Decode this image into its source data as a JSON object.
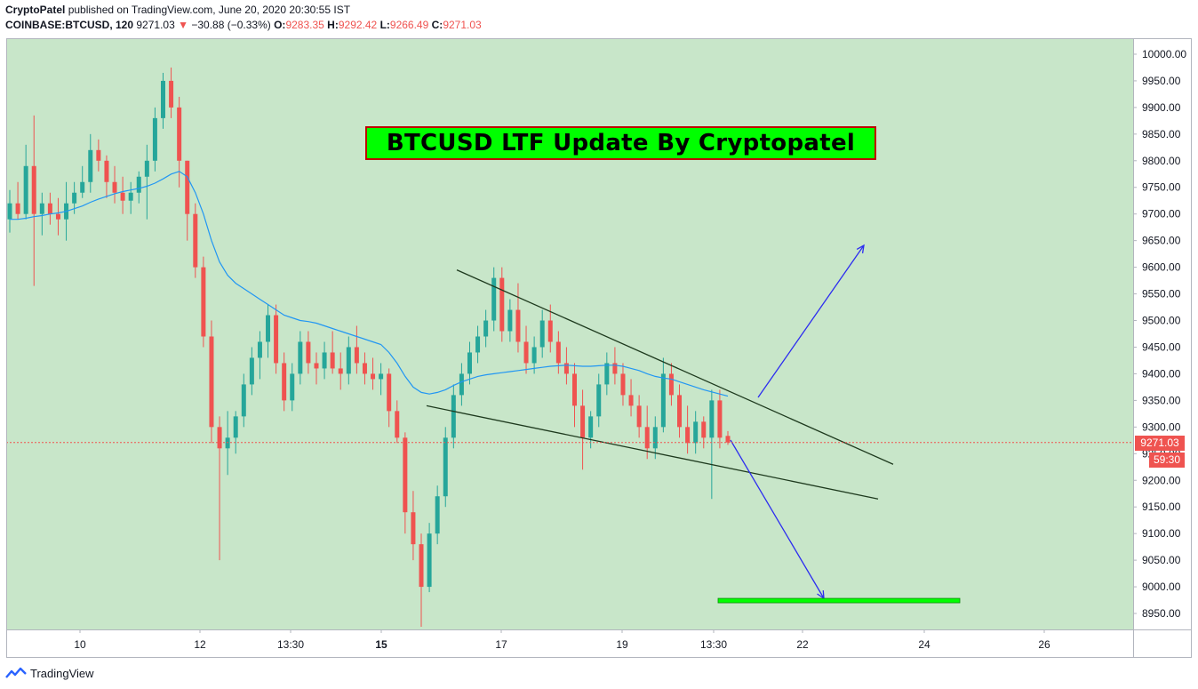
{
  "header": {
    "author": "CryptoPatel",
    "published_text": "published on TradingView.com, June 20, 2020 20:30:55 IST",
    "symbol": "COINBASE:BTCUSD, 120",
    "last": "9271.03",
    "change_arrow": "▼",
    "change": "−30.88 (−0.33%)",
    "o_label": "O:",
    "o_value": "9283.35",
    "h_label": "H:",
    "h_value": "9292.42",
    "l_label": "L:",
    "l_value": "9266.49",
    "c_label": "C:",
    "c_value": "9271.03"
  },
  "annotation": {
    "title": "BTCUSD LTF Update By Cryptopatel"
  },
  "price_label": "9271.03",
  "countdown": "59:30",
  "footer": {
    "brand": "TradingView"
  },
  "colors": {
    "chart_background": "#c8e6c9",
    "up_candle": "#26a69a",
    "down_candle": "#ef5350",
    "moving_average": "#2196f3",
    "trendline": "#1e3a1e",
    "target_arrow": "#2c2cf0",
    "target_zone": "#00ff00"
  },
  "chart_data": {
    "type": "candlestick",
    "symbol": "COINBASE:BTCUSD",
    "interval": "120",
    "ylim": [
      8920,
      10030
    ],
    "y_ticks": [
      "10000.00",
      "9950.00",
      "9900.00",
      "9850.00",
      "9800.00",
      "9750.00",
      "9700.00",
      "9650.00",
      "9600.00",
      "9550.00",
      "9500.00",
      "9450.00",
      "9400.00",
      "9350.00",
      "9300.00",
      "9250.00",
      "9200.00",
      "9150.00",
      "9100.00",
      "9050.00",
      "9000.00",
      "8950.00"
    ],
    "x_ticks": [
      "10",
      "12",
      "13:30",
      "15",
      "17",
      "19",
      "13:30",
      "22",
      "24",
      "26"
    ],
    "last_price": 9271.03,
    "drawings": {
      "upper_trendline": {
        "from": 9595,
        "to": 9230
      },
      "lower_trendline": {
        "from": 9340,
        "to": 9165
      },
      "target_level": 8975
    },
    "candles_ohlc": [
      [
        9690,
        9745,
        9665,
        9720
      ],
      [
        9720,
        9760,
        9690,
        9700
      ],
      [
        9700,
        9830,
        9690,
        9790
      ],
      [
        9790,
        9885,
        9565,
        9700
      ],
      [
        9700,
        9740,
        9660,
        9720
      ],
      [
        9720,
        9740,
        9680,
        9700
      ],
      [
        9700,
        9730,
        9660,
        9690
      ],
      [
        9690,
        9760,
        9650,
        9720
      ],
      [
        9720,
        9760,
        9700,
        9740
      ],
      [
        9740,
        9790,
        9730,
        9760
      ],
      [
        9760,
        9850,
        9740,
        9820
      ],
      [
        9820,
        9840,
        9780,
        9800
      ],
      [
        9800,
        9810,
        9730,
        9760
      ],
      [
        9760,
        9790,
        9720,
        9740
      ],
      [
        9740,
        9770,
        9700,
        9725
      ],
      [
        9725,
        9760,
        9700,
        9740
      ],
      [
        9740,
        9780,
        9720,
        9770
      ],
      [
        9770,
        9830,
        9690,
        9800
      ],
      [
        9800,
        9900,
        9780,
        9880
      ],
      [
        9880,
        9965,
        9860,
        9950
      ],
      [
        9950,
        9975,
        9880,
        9900
      ],
      [
        9900,
        9920,
        9750,
        9800
      ],
      [
        9800,
        9800,
        9650,
        9700
      ],
      [
        9700,
        9720,
        9580,
        9600
      ],
      [
        9600,
        9620,
        9450,
        9470
      ],
      [
        9470,
        9500,
        9270,
        9300
      ],
      [
        9300,
        9320,
        9050,
        9260
      ],
      [
        9260,
        9330,
        9210,
        9280
      ],
      [
        9280,
        9330,
        9250,
        9320
      ],
      [
        9320,
        9400,
        9300,
        9380
      ],
      [
        9380,
        9450,
        9360,
        9430
      ],
      [
        9430,
        9480,
        9390,
        9460
      ],
      [
        9460,
        9530,
        9430,
        9510
      ],
      [
        9510,
        9530,
        9400,
        9420
      ],
      [
        9420,
        9440,
        9330,
        9350
      ],
      [
        9350,
        9420,
        9330,
        9400
      ],
      [
        9400,
        9480,
        9380,
        9460
      ],
      [
        9460,
        9480,
        9400,
        9420
      ],
      [
        9420,
        9440,
        9380,
        9410
      ],
      [
        9410,
        9460,
        9390,
        9440
      ],
      [
        9440,
        9480,
        9400,
        9410
      ],
      [
        9410,
        9440,
        9370,
        9400
      ],
      [
        9400,
        9470,
        9380,
        9450
      ],
      [
        9450,
        9490,
        9400,
        9420
      ],
      [
        9420,
        9440,
        9380,
        9400
      ],
      [
        9400,
        9430,
        9370,
        9390
      ],
      [
        9390,
        9420,
        9360,
        9400
      ],
      [
        9400,
        9410,
        9300,
        9330
      ],
      [
        9330,
        9350,
        9270,
        9280
      ],
      [
        9280,
        9290,
        9100,
        9140
      ],
      [
        9140,
        9180,
        9050,
        9080
      ],
      [
        9080,
        9100,
        8925,
        9000
      ],
      [
        9000,
        9120,
        8990,
        9100
      ],
      [
        9100,
        9190,
        9080,
        9170
      ],
      [
        9170,
        9300,
        9150,
        9280
      ],
      [
        9280,
        9380,
        9260,
        9360
      ],
      [
        9360,
        9420,
        9340,
        9400
      ],
      [
        9400,
        9460,
        9380,
        9440
      ],
      [
        9440,
        9490,
        9420,
        9470
      ],
      [
        9470,
        9520,
        9450,
        9500
      ],
      [
        9500,
        9600,
        9480,
        9580
      ],
      [
        9580,
        9600,
        9460,
        9480
      ],
      [
        9480,
        9540,
        9460,
        9520
      ],
      [
        9520,
        9570,
        9440,
        9460
      ],
      [
        9460,
        9490,
        9400,
        9420
      ],
      [
        9420,
        9470,
        9400,
        9450
      ],
      [
        9450,
        9520,
        9430,
        9500
      ],
      [
        9500,
        9530,
        9440,
        9460
      ],
      [
        9460,
        9480,
        9400,
        9420
      ],
      [
        9420,
        9450,
        9380,
        9400
      ],
      [
        9400,
        9420,
        9300,
        9340
      ],
      [
        9340,
        9370,
        9220,
        9280
      ],
      [
        9280,
        9330,
        9260,
        9320
      ],
      [
        9320,
        9400,
        9300,
        9380
      ],
      [
        9380,
        9440,
        9360,
        9420
      ],
      [
        9420,
        9450,
        9380,
        9400
      ],
      [
        9400,
        9420,
        9340,
        9360
      ],
      [
        9360,
        9390,
        9320,
        9340
      ],
      [
        9340,
        9360,
        9280,
        9300
      ],
      [
        9300,
        9340,
        9240,
        9260
      ],
      [
        9260,
        9320,
        9240,
        9300
      ],
      [
        9300,
        9430,
        9290,
        9400
      ],
      [
        9400,
        9420,
        9340,
        9360
      ],
      [
        9360,
        9380,
        9280,
        9300
      ],
      [
        9300,
        9340,
        9250,
        9270
      ],
      [
        9270,
        9330,
        9250,
        9310
      ],
      [
        9310,
        9320,
        9260,
        9280
      ],
      [
        9280,
        9370,
        9165,
        9350
      ],
      [
        9350,
        9370,
        9260,
        9280
      ],
      [
        9283.35,
        9292.42,
        9266.49,
        9271.03
      ]
    ],
    "moving_average": [
      9690,
      9690,
      9692,
      9695,
      9697,
      9700,
      9702,
      9705,
      9710,
      9715,
      9722,
      9728,
      9733,
      9738,
      9742,
      9745,
      9748,
      9752,
      9758,
      9766,
      9775,
      9780,
      9770,
      9740,
      9700,
      9650,
      9610,
      9585,
      9570,
      9560,
      9550,
      9540,
      9530,
      9520,
      9510,
      9505,
      9500,
      9498,
      9495,
      9490,
      9485,
      9480,
      9475,
      9470,
      9465,
      9460,
      9455,
      9440,
      9420,
      9395,
      9375,
      9365,
      9362,
      9365,
      9370,
      9378,
      9385,
      9390,
      9395,
      9398,
      9400,
      9402,
      9404,
      9406,
      9408,
      9410,
      9412,
      9414,
      9415,
      9416,
      9415,
      9414,
      9414,
      9415,
      9416,
      9416,
      9414,
      9410,
      9406,
      9400,
      9395,
      9392,
      9390,
      9385,
      9380,
      9375,
      9370,
      9366,
      9362,
      9358
    ]
  }
}
